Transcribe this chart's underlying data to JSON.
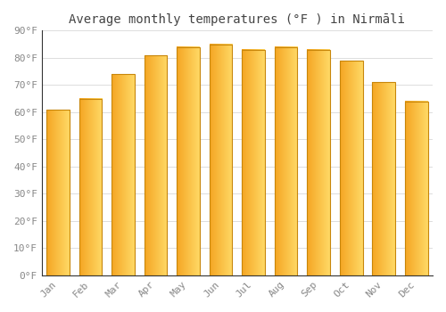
{
  "title": "Average monthly temperatures (°F ) in Nirmāli",
  "months": [
    "Jan",
    "Feb",
    "Mar",
    "Apr",
    "May",
    "Jun",
    "Jul",
    "Aug",
    "Sep",
    "Oct",
    "Nov",
    "Dec"
  ],
  "values": [
    61,
    65,
    74,
    81,
    84,
    85,
    83,
    84,
    83,
    79,
    71,
    64
  ],
  "bar_color_left": "#F5A623",
  "bar_color_right": "#FFD966",
  "bar_edge_color": "#C8860A",
  "background_color": "#FFFFFF",
  "grid_color": "#DDDDDD",
  "ylim": [
    0,
    90
  ],
  "yticks": [
    0,
    10,
    20,
    30,
    40,
    50,
    60,
    70,
    80,
    90
  ],
  "ytick_labels": [
    "0°F",
    "10°F",
    "20°F",
    "30°F",
    "40°F",
    "50°F",
    "60°F",
    "70°F",
    "80°F",
    "90°F"
  ],
  "title_fontsize": 10,
  "tick_fontsize": 8,
  "font_color": "#888888"
}
